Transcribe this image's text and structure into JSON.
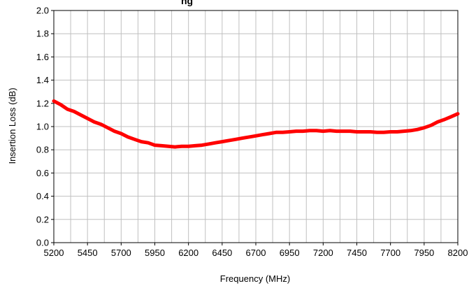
{
  "chart_data": {
    "type": "line",
    "title": "",
    "title_partial_visible": "ng",
    "xlabel": "Frequency (MHz)",
    "ylabel": "Insertion Loss (dB)",
    "xlim": [
      5200,
      8200
    ],
    "ylim": [
      0.0,
      2.0
    ],
    "x_ticks": [
      5200,
      5450,
      5700,
      5950,
      6200,
      6450,
      6700,
      6950,
      7200,
      7450,
      7700,
      7950,
      8200
    ],
    "y_ticks": [
      0.0,
      0.2,
      0.4,
      0.6,
      0.8,
      1.0,
      1.2,
      1.4,
      1.6,
      1.8,
      2.0
    ],
    "y_tick_labels": [
      "0.0",
      "0.2",
      "0.4",
      "0.6",
      "0.8",
      "1.0",
      "1.2",
      "1.4",
      "1.6",
      "1.8",
      "2.0"
    ],
    "x_minor_step": 125,
    "grid": true,
    "series": [
      {
        "name": "",
        "color": "#ff0000",
        "x": [
          5200,
          5250,
          5300,
          5350,
          5400,
          5450,
          5500,
          5550,
          5600,
          5650,
          5700,
          5750,
          5800,
          5850,
          5900,
          5950,
          6000,
          6050,
          6100,
          6150,
          6200,
          6250,
          6300,
          6350,
          6400,
          6450,
          6500,
          6550,
          6600,
          6650,
          6700,
          6750,
          6800,
          6850,
          6900,
          6950,
          7000,
          7050,
          7100,
          7150,
          7200,
          7250,
          7300,
          7350,
          7400,
          7450,
          7500,
          7550,
          7600,
          7650,
          7700,
          7750,
          7800,
          7850,
          7900,
          7950,
          8000,
          8050,
          8100,
          8150,
          8200
        ],
        "y": [
          1.22,
          1.19,
          1.15,
          1.13,
          1.1,
          1.07,
          1.04,
          1.02,
          0.99,
          0.96,
          0.94,
          0.91,
          0.89,
          0.87,
          0.86,
          0.84,
          0.835,
          0.83,
          0.825,
          0.83,
          0.83,
          0.835,
          0.84,
          0.85,
          0.86,
          0.87,
          0.88,
          0.89,
          0.9,
          0.91,
          0.92,
          0.93,
          0.94,
          0.95,
          0.95,
          0.955,
          0.96,
          0.96,
          0.965,
          0.965,
          0.96,
          0.965,
          0.96,
          0.96,
          0.96,
          0.955,
          0.955,
          0.955,
          0.95,
          0.95,
          0.955,
          0.955,
          0.96,
          0.965,
          0.975,
          0.99,
          1.01,
          1.04,
          1.06,
          1.085,
          1.11
        ]
      }
    ]
  }
}
